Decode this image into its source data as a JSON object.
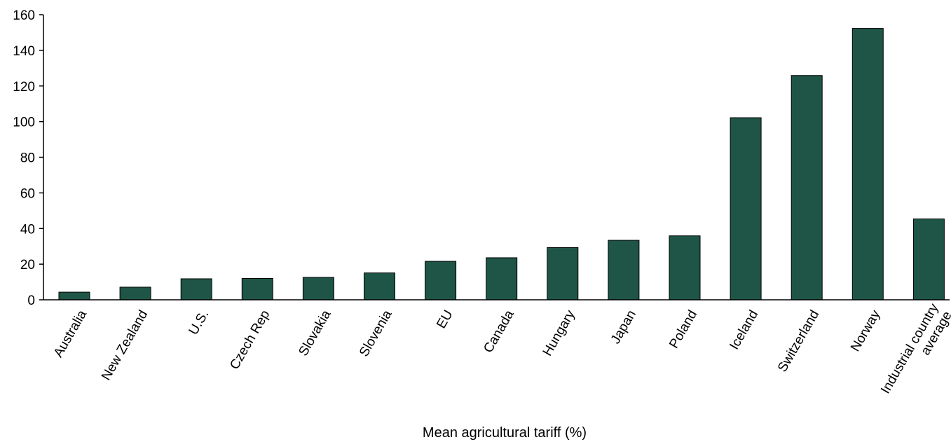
{
  "chart_data": {
    "type": "bar",
    "title": "",
    "xlabel": "Mean agricultural tariff (%)",
    "ylabel": "",
    "ylim": [
      0,
      160
    ],
    "yticks": [
      0,
      20,
      40,
      60,
      80,
      100,
      120,
      140,
      160
    ],
    "grid": false,
    "categories": [
      "Australia",
      "New Zealand",
      "U.S.",
      "Czech Rep",
      "Slovakia",
      "Slovenia",
      "EU",
      "Canada",
      "Hungary",
      "Japan",
      "Poland",
      "Iceland",
      "Switzerland",
      "Norway",
      "Industrial country average"
    ],
    "values": [
      4.3,
      7.1,
      11.8,
      12.0,
      12.6,
      15.1,
      21.6,
      23.6,
      29.3,
      33.4,
      35.9,
      102.2,
      125.9,
      152.3,
      45.4
    ],
    "bar_color": "#1e5546"
  }
}
